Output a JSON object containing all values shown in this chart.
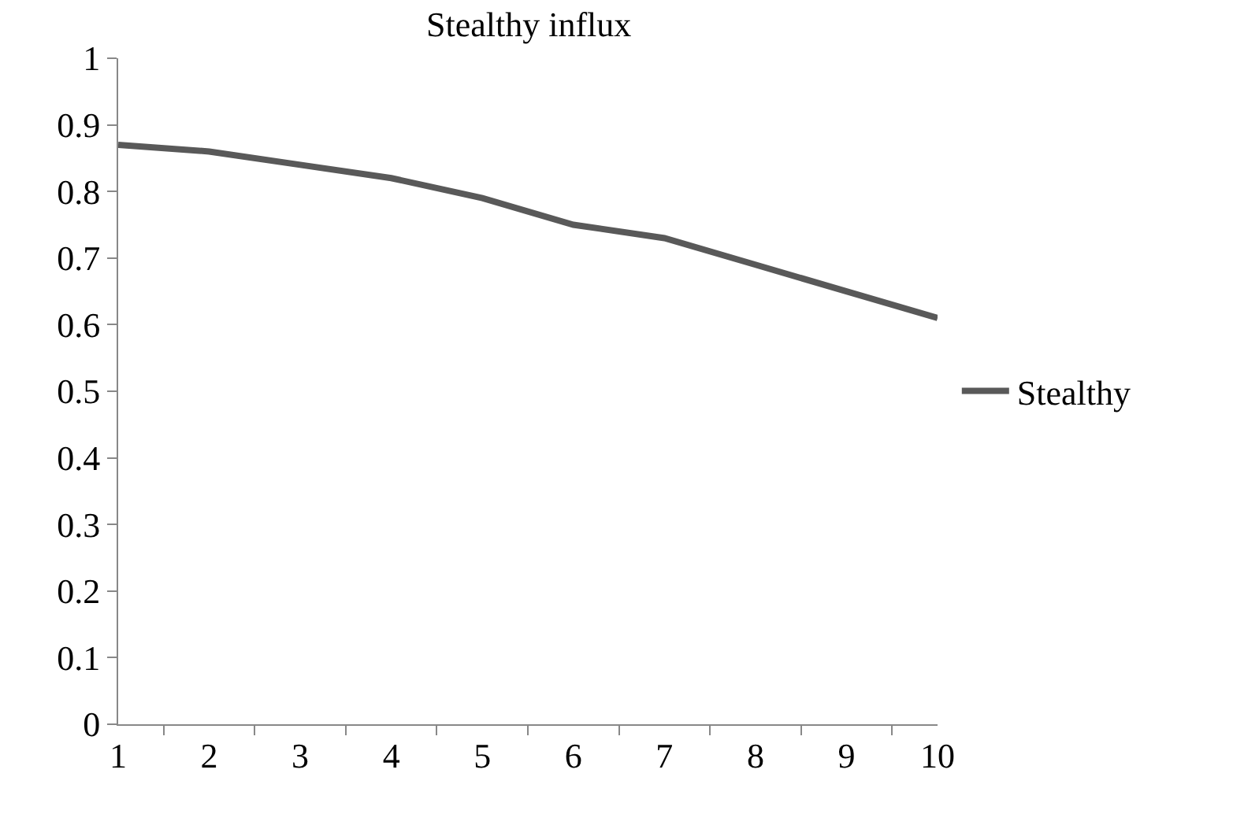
{
  "chart_data": {
    "type": "line",
    "title": "Stealthy influx",
    "categories": [
      "1",
      "2",
      "3",
      "4",
      "5",
      "6",
      "7",
      "8",
      "9",
      "10"
    ],
    "series": [
      {
        "name": "Stealthy",
        "color": "#595959",
        "values": [
          0.87,
          0.86,
          0.84,
          0.82,
          0.79,
          0.75,
          0.73,
          0.69,
          0.65,
          0.61
        ]
      }
    ],
    "ylim": [
      0,
      1
    ],
    "yticks": [
      0,
      0.1,
      0.2,
      0.3,
      0.4,
      0.5,
      0.6,
      0.7,
      0.8,
      0.9,
      1
    ],
    "grid": false,
    "legend": "right",
    "marker": "none",
    "line_style": "solid"
  }
}
